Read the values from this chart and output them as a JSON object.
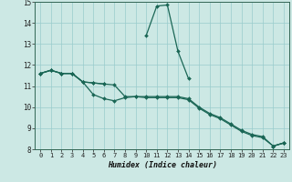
{
  "xlabel": "Humidex (Indice chaleur)",
  "background_color": "#cce8e4",
  "grid_color": "#99cccc",
  "line_color": "#1a6655",
  "xlim": [
    -0.5,
    23.5
  ],
  "ylim": [
    8,
    15
  ],
  "yticks": [
    8,
    9,
    10,
    11,
    12,
    13,
    14,
    15
  ],
  "xticks": [
    0,
    1,
    2,
    3,
    4,
    5,
    6,
    7,
    8,
    9,
    10,
    11,
    12,
    13,
    14,
    15,
    16,
    17,
    18,
    19,
    20,
    21,
    22,
    23
  ],
  "lines": [
    {
      "x": [
        0,
        1,
        2,
        3,
        4,
        5,
        6,
        7,
        8,
        9,
        10,
        11,
        12,
        13,
        14,
        15,
        16,
        17,
        18,
        19,
        20,
        21,
        22,
        23
      ],
      "y": [
        11.6,
        11.75,
        11.6,
        11.6,
        11.2,
        11.15,
        11.1,
        null,
        null,
        null,
        13.4,
        14.8,
        14.85,
        12.65,
        11.35,
        null,
        null,
        null,
        null,
        null,
        null,
        null,
        8.15,
        8.3
      ]
    },
    {
      "x": [
        0,
        1,
        2,
        3,
        4,
        5,
        6,
        7,
        8,
        9,
        10,
        11,
        12,
        13,
        14,
        15,
        16,
        17,
        18,
        19,
        20,
        21,
        22,
        23
      ],
      "y": [
        11.6,
        11.75,
        11.6,
        11.6,
        11.2,
        10.6,
        10.4,
        10.3,
        10.45,
        10.5,
        10.5,
        10.5,
        10.5,
        10.5,
        10.4,
        10.0,
        9.7,
        9.5,
        9.2,
        8.9,
        8.7,
        8.6,
        8.15,
        8.3
      ]
    },
    {
      "x": [
        0,
        1,
        2,
        3,
        4,
        5,
        6,
        7,
        8,
        9,
        10,
        11,
        12,
        13,
        14,
        15,
        16,
        17,
        18,
        19,
        20,
        21,
        22,
        23
      ],
      "y": [
        11.6,
        11.75,
        11.6,
        11.6,
        11.2,
        11.15,
        11.1,
        11.05,
        10.5,
        10.5,
        10.45,
        10.45,
        10.45,
        10.45,
        10.35,
        9.95,
        9.65,
        9.45,
        9.15,
        8.85,
        8.65,
        8.55,
        8.15,
        8.3
      ]
    }
  ]
}
